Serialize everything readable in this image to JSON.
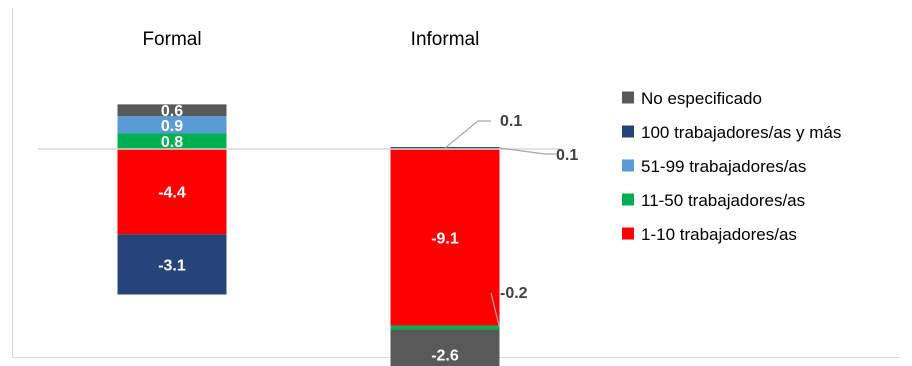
{
  "chart_data": {
    "type": "bar",
    "stacked": true,
    "title": "",
    "xlabel": "",
    "ylabel": "",
    "categories": [
      "Formal",
      "Informal"
    ],
    "series": [
      {
        "name": "1-10 trabajadores/as",
        "color": "#ff0000",
        "label_color": "#ffffff",
        "values": [
          -4.4,
          -9.1
        ],
        "labels": [
          "-4.4",
          "-9.1"
        ]
      },
      {
        "name": "11-50 trabajadores/as",
        "color": "#00b050",
        "label_color": "#ffffff",
        "values": [
          0.8,
          -0.2
        ],
        "labels": [
          "0.8",
          "-0.2"
        ]
      },
      {
        "name": "51-99 trabajadores/as",
        "color": "#5b9bd5",
        "label_color": "#ffffff",
        "values": [
          0.9,
          0.0
        ],
        "labels": [
          "0.9",
          ""
        ]
      },
      {
        "name": "100 trabajadores/as y más",
        "color": "#264478",
        "label_color": "#ffffff",
        "values": [
          -3.1,
          0.1
        ],
        "labels": [
          "-3.1",
          "0.1"
        ]
      },
      {
        "name": "No especificado",
        "color": "#595959",
        "label_color": "#ffffff",
        "values": [
          0.6,
          -2.6
        ],
        "labels": [
          "0.6",
          "-2.6"
        ]
      }
    ],
    "legend": {
      "position": "right"
    },
    "grid": false
  }
}
